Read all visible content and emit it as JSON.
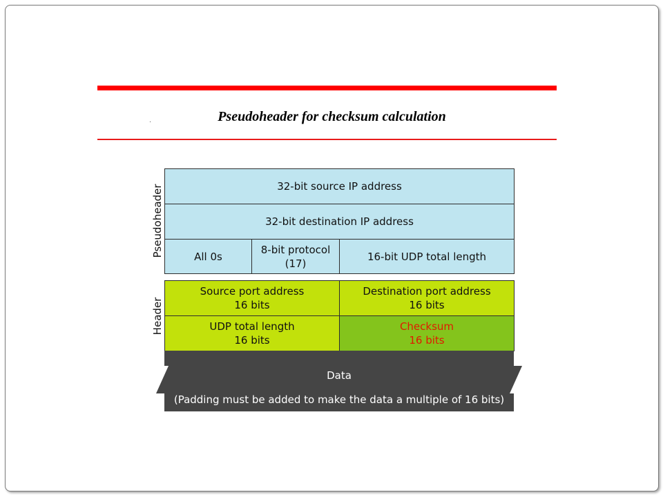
{
  "slide": {
    "title": "Pseudoheader for checksum calculation",
    "accent_color": "#ff0000"
  },
  "diagram": {
    "pseudoheader_label": "Pseudoheader",
    "header_label": "Header",
    "pseudoheader": {
      "source_ip": "32-bit source IP address",
      "destination_ip": "32-bit destination IP address",
      "all_zeros": "All 0s",
      "protocol_line1": "8-bit protocol",
      "protocol_line2": "(17)",
      "udp_length": "16-bit UDP total length"
    },
    "header": {
      "source_port_line1": "Source port address",
      "source_port_line2": "16 bits",
      "dest_port_line1": "Destination port address",
      "dest_port_line2": "16 bits",
      "total_length_line1": "UDP total length",
      "total_length_line2": "16 bits",
      "checksum_line1": "Checksum",
      "checksum_line2": "16 bits"
    },
    "data": {
      "label": "Data",
      "padding_note": "(Padding must be added to make the data a multiple of 16 bits)"
    },
    "colors": {
      "pseudoheader_fill": "#bfe5f0",
      "header_fill": "#c2e10b",
      "checksum_fill": "#84c41c",
      "checksum_text": "#e01b00",
      "data_fill": "#454545"
    }
  }
}
